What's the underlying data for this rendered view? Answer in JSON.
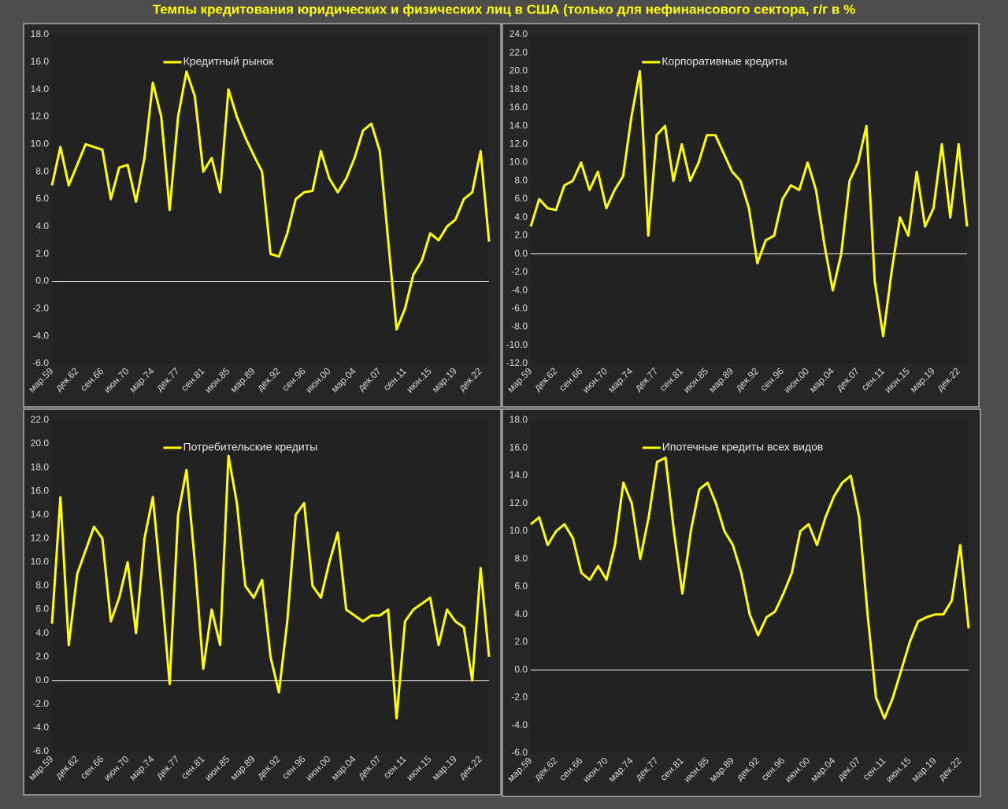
{
  "title": "Темпы кредитования юридических и физических лиц в США (только для нефинансового сектора, г/г в %",
  "chart_data": [
    {
      "type": "line",
      "categories": [
        "мар.59",
        null,
        null,
        "дек.62",
        null,
        null,
        "сен.66",
        null,
        null,
        "июн.70",
        null,
        null,
        "мар.74",
        null,
        null,
        "дек.77",
        null,
        null,
        "сен.81",
        null,
        null,
        "июн.85",
        null,
        null,
        "мар.89",
        null,
        null,
        "дек.92",
        null,
        null,
        "сен.96",
        null,
        null,
        "июн.00",
        null,
        null,
        "мар.04",
        null,
        null,
        "дек.07",
        null,
        null,
        "сен.11",
        null,
        null,
        "июн.15",
        null,
        null,
        "мар.19",
        null,
        null,
        "дек.22",
        null
      ],
      "series": [
        {
          "name": "Кредитный рынок",
          "color": "#ffff00",
          "values": [
            7,
            9.8,
            7,
            8.5,
            10,
            9.8,
            9.6,
            6,
            8.3,
            8.5,
            5.8,
            9,
            14.5,
            12,
            5.2,
            12,
            15.3,
            13.5,
            8,
            9,
            6.5,
            14,
            12,
            10.5,
            9.2,
            8,
            2,
            1.8,
            3.5,
            6,
            6.5,
            6.6,
            9.5,
            7.5,
            6.5,
            7.5,
            9,
            11,
            11.5,
            9.5,
            3,
            -3.5,
            -2,
            0.5,
            1.5,
            3.5,
            3,
            4,
            4.5,
            6,
            6.5,
            9.5,
            2.9
          ]
        }
      ],
      "ylim": [
        -6,
        18
      ],
      "yticks": [
        {
          "value": -6,
          "label": "-6.0"
        },
        {
          "value": -4,
          "label": "-4.0"
        },
        {
          "value": -2,
          "label": "-2.0"
        },
        {
          "value": 0,
          "label": "0.0"
        },
        {
          "value": 2,
          "label": "2.0"
        },
        {
          "value": 4,
          "label": "4.0"
        },
        {
          "value": 6,
          "label": "6.0"
        },
        {
          "value": 8,
          "label": "8.0"
        },
        {
          "value": 10,
          "label": "10.0"
        },
        {
          "value": 12,
          "label": "12.0"
        },
        {
          "value": 14,
          "label": "14.0"
        },
        {
          "value": 16,
          "label": "16.0"
        },
        {
          "value": 18,
          "label": "18.0"
        }
      ],
      "zero_line": true
    },
    {
      "type": "line",
      "categories": [
        "мар.59",
        null,
        null,
        "дек.62",
        null,
        null,
        "сен.66",
        null,
        null,
        "июн.70",
        null,
        null,
        "мар.74",
        null,
        null,
        "дек.77",
        null,
        null,
        "сен.81",
        null,
        null,
        "июн.85",
        null,
        null,
        "мар.89",
        null,
        null,
        "дек.92",
        null,
        null,
        "сен.96",
        null,
        null,
        "июн.00",
        null,
        null,
        "мар.04",
        null,
        null,
        "дек.07",
        null,
        null,
        "сен.11",
        null,
        null,
        "июн.15",
        null,
        null,
        "мар.19",
        null,
        null,
        "дек.22",
        null
      ],
      "series": [
        {
          "name": "Корпоративные кредиты",
          "color": "#ffff00",
          "values": [
            3,
            6,
            5,
            4.8,
            7.5,
            8,
            10,
            7,
            9,
            5,
            7,
            8.5,
            15,
            20,
            2,
            13,
            14,
            8,
            12,
            8,
            10,
            13,
            13,
            11,
            9,
            8,
            5,
            -1,
            1.5,
            2,
            6,
            7.5,
            7,
            10,
            7,
            1,
            -4,
            0,
            8,
            10,
            14,
            -3,
            -9,
            -2,
            4,
            2,
            9,
            3,
            5,
            12,
            4,
            12,
            3
          ]
        }
      ],
      "ylim": [
        -12,
        24
      ],
      "yticks": [
        {
          "value": -12,
          "label": "-12.0"
        },
        {
          "value": -10,
          "label": "-10.0"
        },
        {
          "value": -8,
          "label": "-8.0"
        },
        {
          "value": -6,
          "label": "-6.0"
        },
        {
          "value": -4,
          "label": "-4.0"
        },
        {
          "value": -2,
          "label": "-2.0"
        },
        {
          "value": 0,
          "label": "0.0"
        },
        {
          "value": 2,
          "label": "2.0"
        },
        {
          "value": 4,
          "label": "4.0"
        },
        {
          "value": 6,
          "label": "6.0"
        },
        {
          "value": 8,
          "label": "8.0"
        },
        {
          "value": 10,
          "label": "10.0"
        },
        {
          "value": 12,
          "label": "12.0"
        },
        {
          "value": 14,
          "label": "14.0"
        },
        {
          "value": 16,
          "label": "16.0"
        },
        {
          "value": 18,
          "label": "18.0"
        },
        {
          "value": 20,
          "label": "20.0"
        },
        {
          "value": 22,
          "label": "22.0"
        },
        {
          "value": 24,
          "label": "24.0"
        }
      ],
      "zero_line": true
    },
    {
      "type": "line",
      "categories": [
        "мар.59",
        null,
        null,
        "дек.62",
        null,
        null,
        "сен.66",
        null,
        null,
        "июн.70",
        null,
        null,
        "мар.74",
        null,
        null,
        "дек.77",
        null,
        null,
        "сен.81",
        null,
        null,
        "июн.85",
        null,
        null,
        "мар.89",
        null,
        null,
        "дек.92",
        null,
        null,
        "сен.96",
        null,
        null,
        "июн.00",
        null,
        null,
        "мар.04",
        null,
        null,
        "дек.07",
        null,
        null,
        "сен.11",
        null,
        null,
        "июн.15",
        null,
        null,
        "мар.19",
        null,
        null,
        "дек.22",
        null
      ],
      "series": [
        {
          "name": "Потребительские кредиты",
          "color": "#ffff00",
          "values": [
            4.8,
            15.5,
            3,
            9,
            11,
            13,
            12,
            5,
            7,
            10,
            4,
            12,
            15.5,
            8,
            -0.3,
            14,
            17.8,
            10,
            1,
            6,
            3,
            19,
            15,
            8,
            7,
            8.5,
            2,
            -1,
            5,
            14,
            15,
            8,
            7,
            10,
            12.5,
            6,
            5.5,
            5,
            5.5,
            5.5,
            6,
            -3.2,
            5,
            6,
            6.5,
            7,
            3,
            6,
            5,
            4.5,
            0,
            9.5,
            2
          ]
        }
      ],
      "ylim": [
        -6,
        22
      ],
      "yticks": [
        {
          "value": -6,
          "label": "-6.0"
        },
        {
          "value": -4,
          "label": "-4.0"
        },
        {
          "value": -2,
          "label": "-2.0"
        },
        {
          "value": 0,
          "label": "0.0"
        },
        {
          "value": 2,
          "label": "2.0"
        },
        {
          "value": 4,
          "label": "4.0"
        },
        {
          "value": 6,
          "label": "6.0"
        },
        {
          "value": 8,
          "label": "8.0"
        },
        {
          "value": 10,
          "label": "10.0"
        },
        {
          "value": 12,
          "label": "12.0"
        },
        {
          "value": 14,
          "label": "14.0"
        },
        {
          "value": 16,
          "label": "16.0"
        },
        {
          "value": 18,
          "label": "18.0"
        },
        {
          "value": 20,
          "label": "20.0"
        },
        {
          "value": 22,
          "label": "22.0"
        }
      ],
      "zero_line": true
    },
    {
      "type": "line",
      "categories": [
        "мар.59",
        null,
        null,
        "дек.62",
        null,
        null,
        "сен.66",
        null,
        null,
        "июн.70",
        null,
        null,
        "мар.74",
        null,
        null,
        "дек.77",
        null,
        null,
        "сен.81",
        null,
        null,
        "июн.85",
        null,
        null,
        "мар.89",
        null,
        null,
        "дек.92",
        null,
        null,
        "сен.96",
        null,
        null,
        "июн.00",
        null,
        null,
        "мар.04",
        null,
        null,
        "дек.07",
        null,
        null,
        "сен.11",
        null,
        null,
        "июн.15",
        null,
        null,
        "мар.19",
        null,
        null,
        "дек.22",
        null
      ],
      "series": [
        {
          "name": "Ипотечные кредиты всех видов",
          "color": "#ffff00",
          "values": [
            10.5,
            11,
            9,
            10,
            10.5,
            9.5,
            7,
            6.5,
            7.5,
            6.5,
            9,
            13.5,
            12,
            8,
            11,
            15,
            15.3,
            10,
            5.5,
            10,
            13,
            13.5,
            12,
            10,
            9,
            7,
            4,
            2.5,
            3.8,
            4.2,
            5.5,
            7,
            10,
            10.5,
            9,
            11,
            12.5,
            13.5,
            14,
            11,
            4,
            -2,
            -3.5,
            -2,
            0,
            2,
            3.5,
            3.8,
            4,
            4,
            5,
            9,
            3
          ]
        }
      ],
      "ylim": [
        -6,
        18
      ],
      "yticks": [
        {
          "value": -6,
          "label": "-6.0"
        },
        {
          "value": -4,
          "label": "-4.0"
        },
        {
          "value": -2,
          "label": "-2.0"
        },
        {
          "value": 0,
          "label": "0.0"
        },
        {
          "value": 2,
          "label": "2.0"
        },
        {
          "value": 4,
          "label": "4.0"
        },
        {
          "value": 6,
          "label": "6.0"
        },
        {
          "value": 8,
          "label": "8.0"
        },
        {
          "value": 10,
          "label": "10.0"
        },
        {
          "value": 12,
          "label": "12.0"
        },
        {
          "value": 14,
          "label": "14.0"
        },
        {
          "value": 16,
          "label": "16.0"
        },
        {
          "value": 18,
          "label": "18.0"
        }
      ],
      "zero_line": true
    }
  ]
}
